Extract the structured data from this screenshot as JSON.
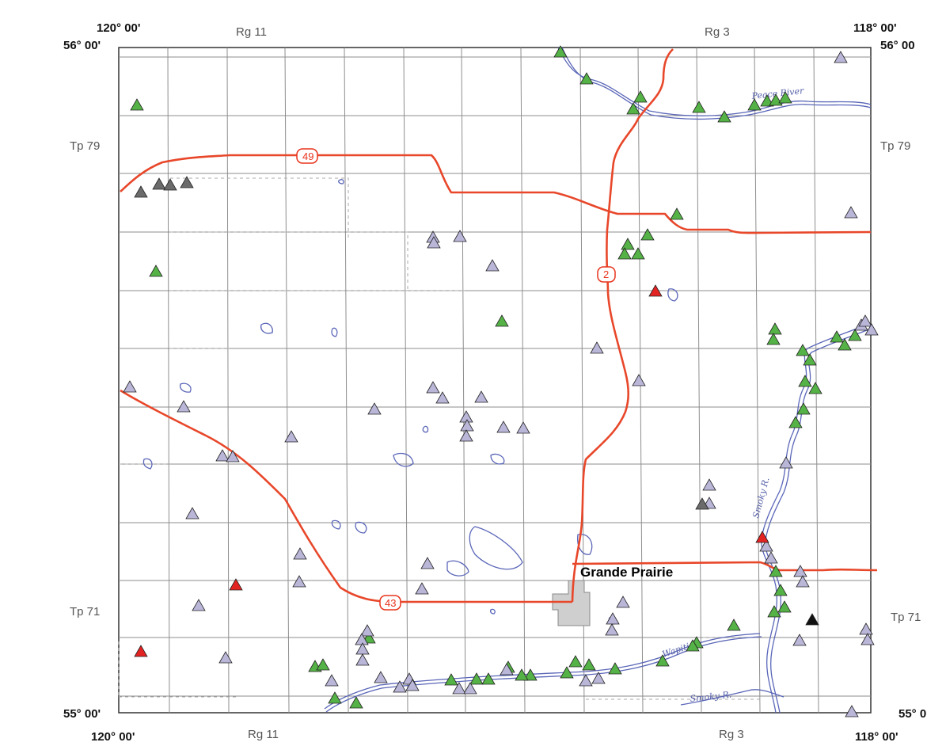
{
  "corners": {
    "top_left_lon": "120° 00'",
    "top_right_lon": "118° 00'",
    "bottom_left_lon": "120° 00'",
    "bottom_right_lon": "118° 00'",
    "top_left_lat": "56° 00'",
    "top_right_lat": "56° 00",
    "bottom_left_lat": "55° 00'",
    "bottom_right_lat": "55° 0"
  },
  "ranges": {
    "top_left": "Rg 11",
    "top_right": "Rg 3",
    "bottom_left": "Rg 11",
    "bottom_right": "Rg 3"
  },
  "townships": {
    "upper_left": "Tp 79",
    "upper_right": "Tp 79",
    "lower_left": "Tp 71",
    "lower_right": "Tp 71"
  },
  "highways": {
    "h49": "49",
    "h2": "2",
    "h43": "43"
  },
  "city": "Grande Prairie",
  "rivers": {
    "peace": "Peace River",
    "smoky_upper": "Smoky R.",
    "wapiti": "Wapiti R.",
    "smoky_lower": "Smoky R."
  },
  "colors": {
    "green": "#55b246",
    "lavender": "#b9b6d8",
    "dark_gray": "#6b6b6b",
    "red": "#e32222",
    "black": "#111111",
    "highway": "#e8472a",
    "water": "#5a66b8",
    "grid": "#8e8e8e"
  }
}
